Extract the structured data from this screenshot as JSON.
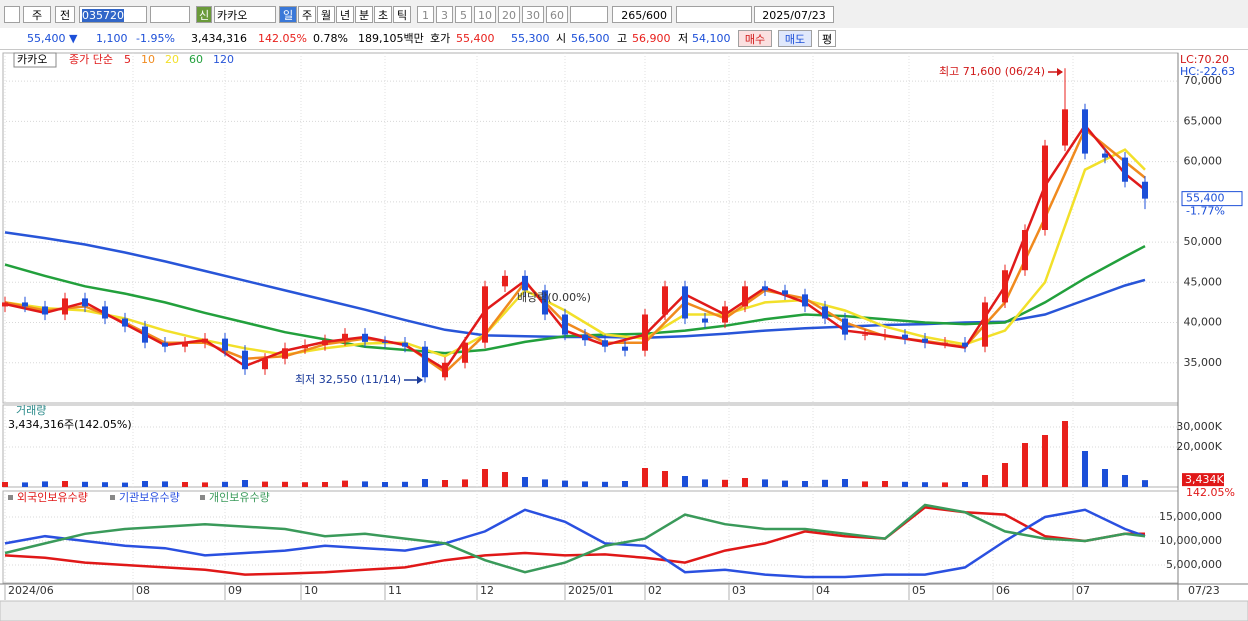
{
  "toolbar": {
    "period": "주",
    "prev": "전",
    "code": "035720",
    "credit": "신",
    "name": "카카오",
    "units": [
      "일",
      "주",
      "월",
      "년",
      "분",
      "초",
      "틱"
    ],
    "intervals": [
      "1",
      "3",
      "5",
      "10",
      "20",
      "30",
      "60",
      "120"
    ],
    "count": "265",
    "count_max": "/600",
    "date": "2025/07/23"
  },
  "info_bar": {
    "price": "55,400 ▼",
    "change": "1,100",
    "change_rate": "-1.95%",
    "volume": "3,434,316",
    "volume_ratio": "142.05%",
    "turnover": "0.78%",
    "amount": "189,105백만",
    "quote_label": "호가",
    "ask": "55,400",
    "bid": "55,300",
    "open_label": "시",
    "open": "56,500",
    "high_label": "고",
    "high": "56,900",
    "low_label": "저",
    "low": "54,100",
    "buy": "매수",
    "sell": "매도",
    "avg": "평"
  },
  "chart_data": [
    {
      "type": "candlestick",
      "legend_title": "카카오",
      "legend_label": "종가 단순",
      "x": [
        0,
        5,
        10,
        15,
        20,
        25,
        30,
        35,
        40,
        45,
        50,
        55,
        60,
        65,
        70,
        75,
        80,
        85,
        90,
        95,
        100,
        105,
        110,
        115,
        120,
        125,
        130,
        135,
        140,
        145,
        150,
        155,
        160,
        165,
        170,
        175,
        180,
        185,
        190,
        195,
        200,
        205,
        210,
        215,
        220,
        225,
        230,
        235,
        240,
        245,
        250,
        255,
        260,
        265,
        270,
        275,
        280,
        285
      ],
      "open": [
        42000,
        42500,
        42000,
        41000,
        43000,
        42000,
        40500,
        39500,
        37500,
        37000,
        37500,
        38000,
        36500,
        34200,
        35500,
        36800,
        37200,
        37800,
        38600,
        37600,
        37500,
        37000,
        33200,
        35000,
        37500,
        44500,
        45800,
        44000,
        41000,
        38500,
        37800,
        37000,
        36500,
        41000,
        44500,
        40500,
        40000,
        42000,
        44500,
        44000,
        43500,
        42000,
        40500,
        38500,
        38500,
        38500,
        38000,
        37500,
        37500,
        37000,
        42500,
        46500,
        51500,
        62000,
        66500,
        61000,
        60500,
        57500
      ],
      "high": [
        43200,
        43200,
        42700,
        43700,
        43700,
        42700,
        41200,
        40200,
        38200,
        38200,
        38700,
        38700,
        37200,
        36200,
        37500,
        37900,
        38500,
        39300,
        39300,
        38300,
        38200,
        37700,
        35700,
        38200,
        45200,
        46500,
        46500,
        44700,
        41700,
        39200,
        38500,
        37700,
        41700,
        45200,
        45200,
        41200,
        42700,
        45200,
        45200,
        44700,
        44200,
        42700,
        41200,
        39200,
        39200,
        39200,
        38700,
        38200,
        38200,
        43200,
        47200,
        52200,
        62700,
        71600,
        67200,
        61700,
        61200,
        58200
      ],
      "low": [
        41300,
        41300,
        40300,
        40300,
        41300,
        39800,
        38800,
        36800,
        36300,
        36300,
        36800,
        35800,
        33500,
        33500,
        34800,
        36100,
        36500,
        37100,
        36900,
        36800,
        36300,
        32550,
        32800,
        34300,
        36800,
        43800,
        43300,
        40300,
        37800,
        37100,
        36300,
        35800,
        35800,
        40300,
        39800,
        39300,
        39300,
        41300,
        43300,
        42800,
        41300,
        39800,
        37800,
        37800,
        37800,
        37300,
        36800,
        36800,
        36300,
        36300,
        41800,
        45800,
        50800,
        61300,
        60300,
        59800,
        56800,
        54100
      ],
      "close": [
        42500,
        42000,
        41000,
        43000,
        42000,
        40500,
        39500,
        37500,
        37000,
        37500,
        38000,
        36500,
        34200,
        35500,
        36800,
        37200,
        37800,
        38600,
        37600,
        37500,
        37000,
        33200,
        35000,
        37500,
        44500,
        45800,
        44000,
        41000,
        38500,
        37800,
        37000,
        36500,
        41000,
        44500,
        40500,
        40000,
        42000,
        44500,
        44000,
        43500,
        42000,
        40500,
        38500,
        38500,
        38500,
        38000,
        37500,
        37500,
        37000,
        42500,
        46500,
        51500,
        62000,
        66500,
        61000,
        60500,
        57500,
        55400
      ],
      "up_color": "#e8201c",
      "down_color": "#1c4fd8",
      "lines": [
        {
          "name": "5",
          "color": "#e01a1a",
          "x": [
            0,
            10,
            20,
            30,
            40,
            50,
            60,
            70,
            80,
            90,
            100,
            110,
            120,
            130,
            140,
            150,
            160,
            170,
            180,
            190,
            200,
            210,
            220,
            230,
            240,
            250,
            260,
            270,
            280,
            285
          ],
          "values": [
            42300,
            41200,
            42500,
            39800,
            37200,
            37800,
            34600,
            36500,
            37600,
            38200,
            37200,
            34200,
            41500,
            45200,
            39000,
            37200,
            38500,
            43500,
            41000,
            44300,
            42500,
            39000,
            38400,
            37600,
            36900,
            44500,
            57000,
            64500,
            58500,
            56500
          ]
        },
        {
          "name": "10",
          "color": "#f08a1e",
          "x": [
            0,
            10,
            20,
            30,
            40,
            50,
            60,
            70,
            80,
            90,
            100,
            110,
            120,
            130,
            140,
            150,
            160,
            170,
            180,
            190,
            200,
            210,
            220,
            230,
            240,
            250,
            260,
            270,
            280,
            285
          ],
          "values": [
            42500,
            41500,
            42000,
            40000,
            37500,
            37500,
            35500,
            35800,
            37300,
            38000,
            37300,
            33800,
            38500,
            45000,
            40000,
            37500,
            37500,
            42500,
            40500,
            44000,
            43000,
            40000,
            38300,
            37700,
            37000,
            42500,
            53000,
            64000,
            60000,
            58000
          ]
        },
        {
          "name": "20",
          "color": "#f2e02a",
          "x": [
            0,
            10,
            20,
            30,
            40,
            50,
            60,
            70,
            80,
            90,
            100,
            110,
            120,
            130,
            140,
            150,
            160,
            170,
            180,
            190,
            200,
            210,
            220,
            230,
            240,
            250,
            260,
            270,
            280,
            285
          ],
          "values": [
            42500,
            41800,
            41500,
            40500,
            39000,
            37800,
            36800,
            36000,
            36800,
            37400,
            37500,
            35800,
            38500,
            44000,
            41500,
            38500,
            38000,
            41000,
            41000,
            42500,
            42800,
            41500,
            39500,
            38200,
            37300,
            39000,
            45000,
            59000,
            61500,
            59000
          ]
        },
        {
          "name": "60",
          "color": "#22a03c",
          "x": [
            0,
            10,
            20,
            30,
            40,
            50,
            60,
            70,
            80,
            90,
            100,
            110,
            120,
            130,
            140,
            150,
            160,
            170,
            180,
            190,
            200,
            210,
            220,
            230,
            240,
            250,
            260,
            270,
            280,
            285
          ],
          "values": [
            47200,
            45800,
            44500,
            43600,
            42500,
            41200,
            40000,
            38800,
            37900,
            37000,
            36600,
            36200,
            36600,
            37600,
            38300,
            38500,
            38600,
            39000,
            39600,
            40400,
            41000,
            40800,
            40400,
            40000,
            39800,
            40000,
            42500,
            45500,
            48200,
            49500
          ]
        },
        {
          "name": "120",
          "color": "#2855d8",
          "x": [
            0,
            10,
            20,
            30,
            40,
            50,
            60,
            70,
            80,
            90,
            100,
            110,
            120,
            130,
            140,
            150,
            160,
            170,
            180,
            190,
            200,
            210,
            220,
            230,
            240,
            250,
            260,
            270,
            280,
            285
          ],
          "values": [
            51200,
            50500,
            49700,
            48700,
            47600,
            46400,
            45200,
            44000,
            42800,
            41600,
            40300,
            39100,
            38400,
            38300,
            38200,
            38200,
            38100,
            38300,
            38600,
            39000,
            39300,
            39500,
            39700,
            39800,
            40000,
            40100,
            41000,
            42800,
            44600,
            45300
          ]
        }
      ],
      "xlim": [
        -0.5,
        293.25
      ],
      "ylim": [
        30000,
        73500
      ],
      "yticks": [
        {
          "value": 35000,
          "label": "35,000"
        },
        {
          "value": 40000,
          "label": "40,000"
        },
        {
          "value": 45000,
          "label": "45,000"
        },
        {
          "value": 50000,
          "label": "50,000"
        },
        {
          "value": 55000,
          "label": "55,000"
        },
        {
          "value": 60000,
          "label": "60,000"
        },
        {
          "value": 65000,
          "label": "65,000"
        },
        {
          "value": 70000,
          "label": "70,000"
        }
      ],
      "xticks": [
        {
          "value": 0,
          "label": "2024/06"
        },
        {
          "value": 32,
          "label": "08"
        },
        {
          "value": 55,
          "label": "09"
        },
        {
          "value": 74,
          "label": "10"
        },
        {
          "value": 95,
          "label": "11"
        },
        {
          "value": 118,
          "label": "12"
        },
        {
          "value": 140,
          "label": "2025/01"
        },
        {
          "value": 160,
          "label": "02"
        },
        {
          "value": 181,
          "label": "03"
        },
        {
          "value": 202,
          "label": "04"
        },
        {
          "value": 226,
          "label": "05"
        },
        {
          "value": 247,
          "label": "06"
        },
        {
          "value": 267,
          "label": "07"
        }
      ],
      "x_end_label": "07/23",
      "high_note": "최고 71,600 (06/24)",
      "low_note": "최저 32,550 (11/14)",
      "event_note": "배당락(0.00%)",
      "lc_label": "LC:70.20",
      "hc_label": "HC:-22.63",
      "price_tag": "55,400",
      "change_tag": "-1.77%",
      "grid": true
    },
    {
      "type": "bar",
      "title": "거래량",
      "subtitle": "3,434,316주(142.05%)",
      "x": [
        0,
        5,
        10,
        15,
        20,
        25,
        30,
        35,
        40,
        45,
        50,
        55,
        60,
        65,
        70,
        75,
        80,
        85,
        90,
        95,
        100,
        105,
        110,
        115,
        120,
        125,
        130,
        135,
        140,
        145,
        150,
        155,
        160,
        165,
        170,
        175,
        180,
        185,
        190,
        195,
        200,
        205,
        210,
        215,
        220,
        225,
        230,
        235,
        240,
        245,
        250,
        255,
        260,
        265,
        270,
        275,
        280,
        285
      ],
      "values": [
        2500,
        2300,
        2800,
        3000,
        2600,
        2400,
        2200,
        3000,
        2800,
        2500,
        2300,
        2600,
        3500,
        2700,
        2600,
        2400,
        2500,
        3200,
        2800,
        2500,
        2600,
        4000,
        3500,
        3800,
        9000,
        7500,
        5000,
        3800,
        3200,
        2800,
        2600,
        3000,
        9500,
        8000,
        5500,
        3800,
        3600,
        4500,
        3800,
        3200,
        3000,
        3600,
        4000,
        2800,
        3000,
        2600,
        2400,
        2300,
        2500,
        6000,
        12000,
        22000,
        26000,
        33000,
        18000,
        9000,
        6000,
        3434
      ],
      "xlim": [
        -0.5,
        293.25
      ],
      "ylim": [
        0,
        41000
      ],
      "yticks": [
        {
          "value": 20000,
          "label": "20,000K"
        },
        {
          "value": 30000,
          "label": "30,000K"
        }
      ],
      "value_tag": "3,434K",
      "ratio_tag": "142.05%",
      "grid": true
    },
    {
      "type": "line",
      "x": [
        0,
        10,
        20,
        30,
        40,
        50,
        60,
        70,
        80,
        90,
        100,
        110,
        120,
        130,
        140,
        150,
        160,
        170,
        180,
        190,
        200,
        210,
        220,
        230,
        240,
        250,
        260,
        270,
        280,
        285
      ],
      "series": [
        {
          "name": "외국인보유수량",
          "color": "#e01818",
          "values": [
            7000000,
            6500000,
            5500000,
            5000000,
            4500000,
            4000000,
            3000000,
            3200000,
            3500000,
            4000000,
            4500000,
            6000000,
            7000000,
            7500000,
            7000000,
            7200000,
            6500000,
            5500000,
            8000000,
            9500000,
            12000000,
            11000000,
            10500000,
            17000000,
            16000000,
            15500000,
            11000000,
            10000000,
            11500000,
            11500000
          ]
        },
        {
          "name": "기관보유수량",
          "color": "#2a50e0",
          "values": [
            9500000,
            11000000,
            10000000,
            9000000,
            8500000,
            7000000,
            7500000,
            8000000,
            9000000,
            8500000,
            8000000,
            9500000,
            12000000,
            16500000,
            14000000,
            9500000,
            9000000,
            3500000,
            4000000,
            3000000,
            2500000,
            2500000,
            3000000,
            3000000,
            4500000,
            10000000,
            15000000,
            16500000,
            12500000,
            11000000
          ]
        },
        {
          "name": "개인보유수량",
          "color": "#3a9a5a",
          "values": [
            7500000,
            9500000,
            11500000,
            12500000,
            13000000,
            13500000,
            13000000,
            12500000,
            11000000,
            11500000,
            10500000,
            9500000,
            6000000,
            3500000,
            5500000,
            9000000,
            10500000,
            15500000,
            13500000,
            12500000,
            12500000,
            11500000,
            10500000,
            17500000,
            16000000,
            12000000,
            10500000,
            10000000,
            11500000,
            11000000
          ]
        }
      ],
      "xlim": [
        -0.5,
        293.25
      ],
      "ylim": [
        1250000,
        20420000
      ],
      "yticks": [
        {
          "value": 5000000,
          "label": "5,000,000"
        },
        {
          "value": 10000000,
          "label": "10,000,000"
        },
        {
          "value": 15000000,
          "label": "15,000,000"
        }
      ],
      "grid": true
    }
  ]
}
